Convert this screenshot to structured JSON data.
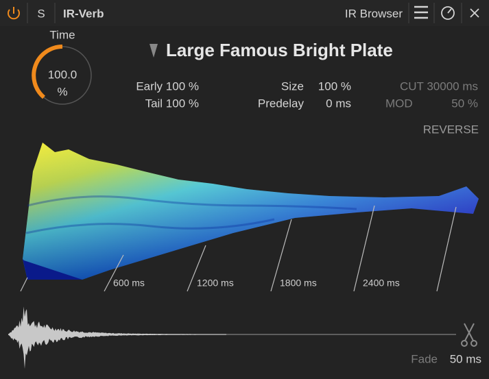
{
  "header": {
    "solo": "S",
    "plugin_name": "IR-Verb",
    "browser": "IR Browser"
  },
  "time_knob": {
    "label": "Time",
    "value": "100.0",
    "unit": "%"
  },
  "preset": {
    "name": "Large Famous Bright Plate"
  },
  "params": {
    "early": "Early 100 %",
    "tail": "Tail 100 %",
    "size_label": "Size",
    "size_value": "100 %",
    "predelay_label": "Predelay",
    "predelay_value": "0 ms",
    "cut": "CUT 30000 ms",
    "mod_label": "MOD",
    "mod_value": "50 %",
    "reverse": "REVERSE"
  },
  "time_axis": [
    "600 ms",
    "1200 ms",
    "1800 ms",
    "2400 ms"
  ],
  "fade": {
    "label": "Fade",
    "value": "50 ms"
  }
}
